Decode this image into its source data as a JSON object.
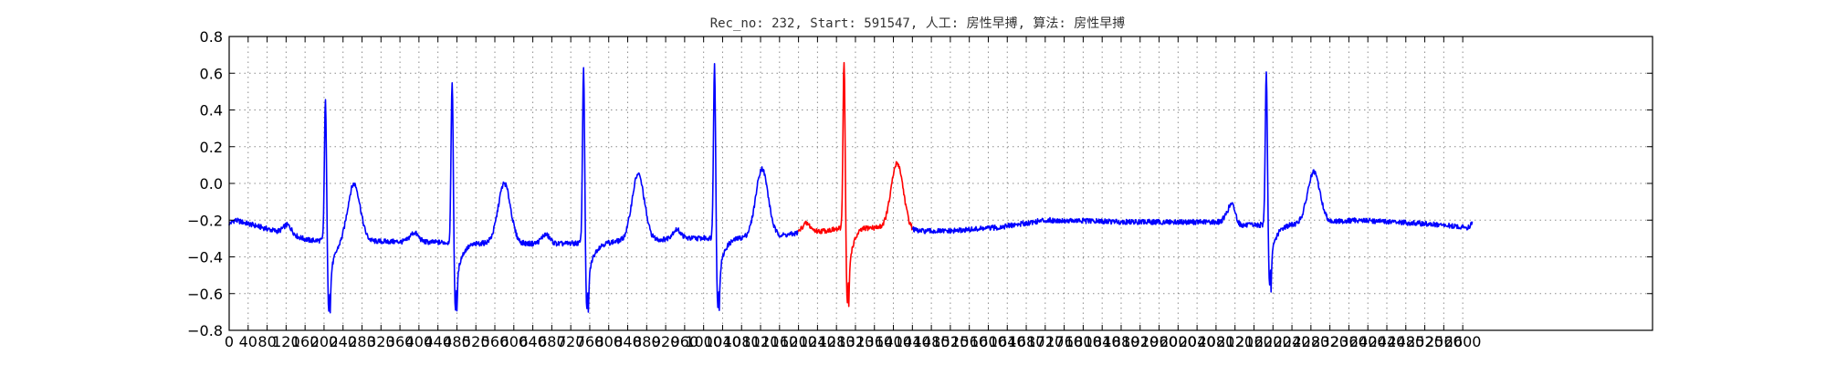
{
  "chart_data": {
    "type": "line",
    "title": "Rec_no: 232, Start: 591547, 人工: 房性早搏, 算法: 房性早搏",
    "xlabel": "",
    "ylabel": "",
    "xlim": [
      0,
      3000
    ],
    "ylim": [
      -0.8,
      0.8
    ],
    "grid": true,
    "yticks": [
      -0.8,
      -0.6,
      -0.4,
      -0.2,
      0.0,
      0.2,
      0.4,
      0.6,
      0.8
    ],
    "ytick_labels": [
      "−0.8",
      "−0.6",
      "−0.4",
      "−0.2",
      "0.0",
      "0.2",
      "0.4",
      "0.6",
      "0.8"
    ],
    "xticks": [
      0,
      40,
      80,
      120,
      160,
      200,
      240,
      280,
      320,
      360,
      400,
      440,
      480,
      520,
      560,
      600,
      640,
      680,
      720,
      760,
      800,
      840,
      880,
      920,
      960,
      1000,
      1040,
      1080,
      1120,
      1160,
      1200,
      1240,
      1280,
      1320,
      1360,
      1400,
      1440,
      1480,
      1520,
      1560,
      1600,
      1640,
      1680,
      1720,
      1760,
      1800,
      1840,
      1880,
      1920,
      1960,
      2000,
      2040,
      2080,
      2120,
      2160,
      2200,
      2240,
      2280,
      2320,
      2360,
      2400,
      2440,
      2480,
      2520,
      2560,
      2600
    ],
    "highlight_range": [
      1200,
      1440
    ],
    "colors": {
      "normal": "#0000ff",
      "highlight": "#ff0000",
      "axis": "#000000",
      "grid": "#8c8c8c"
    },
    "beats": [
      {
        "r": 203,
        "s": -0.69,
        "t": 60,
        "tp": 0.0
      },
      {
        "r": 470,
        "s": -0.69,
        "t": 110,
        "tp": 0.0
      },
      {
        "r": 747,
        "s": -0.7,
        "t": 115,
        "tp": 0.05
      },
      {
        "r": 1023,
        "s": -0.68,
        "t": 100,
        "tp": 0.08
      },
      {
        "r": 1296,
        "s": -0.66,
        "t": 112,
        "tp": 0.11
      },
      {
        "r": 2186,
        "s": -0.57,
        "t": 100,
        "tp": 0.06
      }
    ],
    "baseline": [
      [
        0,
        -0.22
      ],
      [
        12,
        -0.2
      ],
      [
        170,
        -0.31
      ],
      [
        420,
        -0.32
      ],
      [
        690,
        -0.33
      ],
      [
        960,
        -0.3
      ],
      [
        1140,
        -0.29
      ],
      [
        1280,
        -0.25
      ],
      [
        1330,
        -0.23
      ],
      [
        1430,
        -0.26
      ],
      [
        1520,
        -0.26
      ],
      [
        1620,
        -0.24
      ],
      [
        1720,
        -0.2
      ],
      [
        1900,
        -0.21
      ],
      [
        2080,
        -0.21
      ],
      [
        2120,
        -0.23
      ],
      [
        2250,
        -0.22
      ],
      [
        2380,
        -0.2
      ],
      [
        2520,
        -0.22
      ],
      [
        2610,
        -0.24
      ],
      [
        2620,
        -0.22
      ]
    ],
    "extra_waves": [
      {
        "center": 2115,
        "amp": 0.08,
        "width": 7
      }
    ],
    "x_end": 2620,
    "noise_amplitude": 0.014
  }
}
